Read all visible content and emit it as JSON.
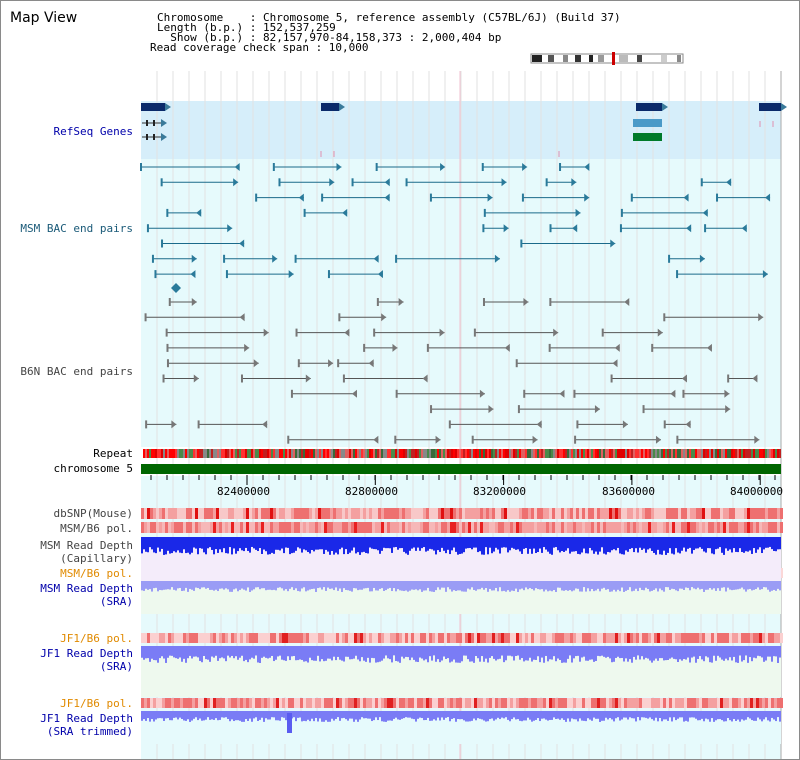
{
  "title": "Map View",
  "info": {
    "chromosome": "Chromosome    : Chromosome 5, reference assembly (C57BL/6J) (Build 37)",
    "length": "Length (b.p.) : 152,537,259",
    "show": "  Show (b.p.) : 82,157,970-84,158,373 : 2,000,404 bp",
    "span": "Read coverage check span : 10,000"
  },
  "tracks": {
    "refseq": "RefSeq Genes",
    "msm_bac": "MSM BAC end pairs",
    "b6n_bac": "B6N BAC end pairs",
    "repeat": "Repeat",
    "chromosome": "chromosome 5",
    "dbsnp": "dbSNP(Mouse)",
    "msm_b6_pol": "MSM/B6 pol.",
    "msm_rd_cap_1": "MSM Read Depth",
    "msm_rd_cap_2": "(Capillary)",
    "msm_b6_pol_sra": "MSM/B6 pol.",
    "msm_rd_sra_1": "MSM Read Depth",
    "msm_rd_sra_2": "(SRA)",
    "jf1_b6_pol": "JF1/B6 pol.",
    "jf1_rd_sra_1": "JF1 Read Depth",
    "jf1_rd_sra_2": "(SRA)",
    "jf1_b6_pol_trim": "JF1/B6 pol.",
    "jf1_rd_trim_1": "JF1 Read Depth",
    "jf1_rd_trim_2": "(SRA trimmed)"
  },
  "axis": {
    "ticks": [
      "82400000",
      "82800000",
      "83200000",
      "83600000",
      "84000000"
    ]
  },
  "colors": {
    "label_blue": "#0000aa",
    "label_teal": "#1a5a78",
    "label_orange": "#e08a00",
    "refseq_bg": "#d6eefa",
    "track_bg": "#e6fafc",
    "chromosome_bar": "#006600",
    "read_depth_dark": "#1a28e8",
    "read_depth_light": "#7a7cf5"
  }
}
